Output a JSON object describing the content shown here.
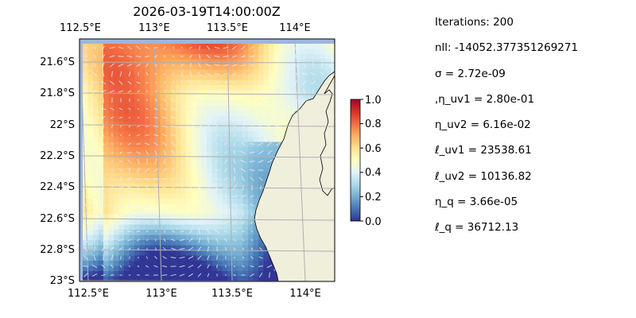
{
  "title": "2026-03-19T14:00:00Z",
  "map": {
    "lon_ticks": [
      "112.5°E",
      "113°E",
      "113.5°E",
      "114°E"
    ],
    "lat_ticks": [
      "21.6°S",
      "21.8°S",
      "22°S",
      "22.2°S",
      "22.4°S",
      "22.6°S",
      "22.8°S",
      "23°S"
    ],
    "colors": {
      "ocean": "#9db6df",
      "land": "#efefdc",
      "grid": "#b0b0b0",
      "vector": "#ffffff"
    },
    "colormap": "RdYlBu_r"
  },
  "colorbar": {
    "ticks": [
      "0.0",
      "0.2",
      "0.4",
      "0.6",
      "0.8",
      "1.0"
    ],
    "range": [
      0,
      1
    ]
  },
  "stats": [
    "Iterations: 200",
    "nll: -14052.377351269271",
    "σ = 2.72e-09",
    ",η_uv1 = 2.80e-01",
    "η_uv2 = 6.16e-02",
    "ℓ_uv1 = 23538.61",
    "ℓ_uv2 = 10136.82",
    "η_q = 3.66e-05",
    "ℓ_q = 36712.13"
  ]
}
